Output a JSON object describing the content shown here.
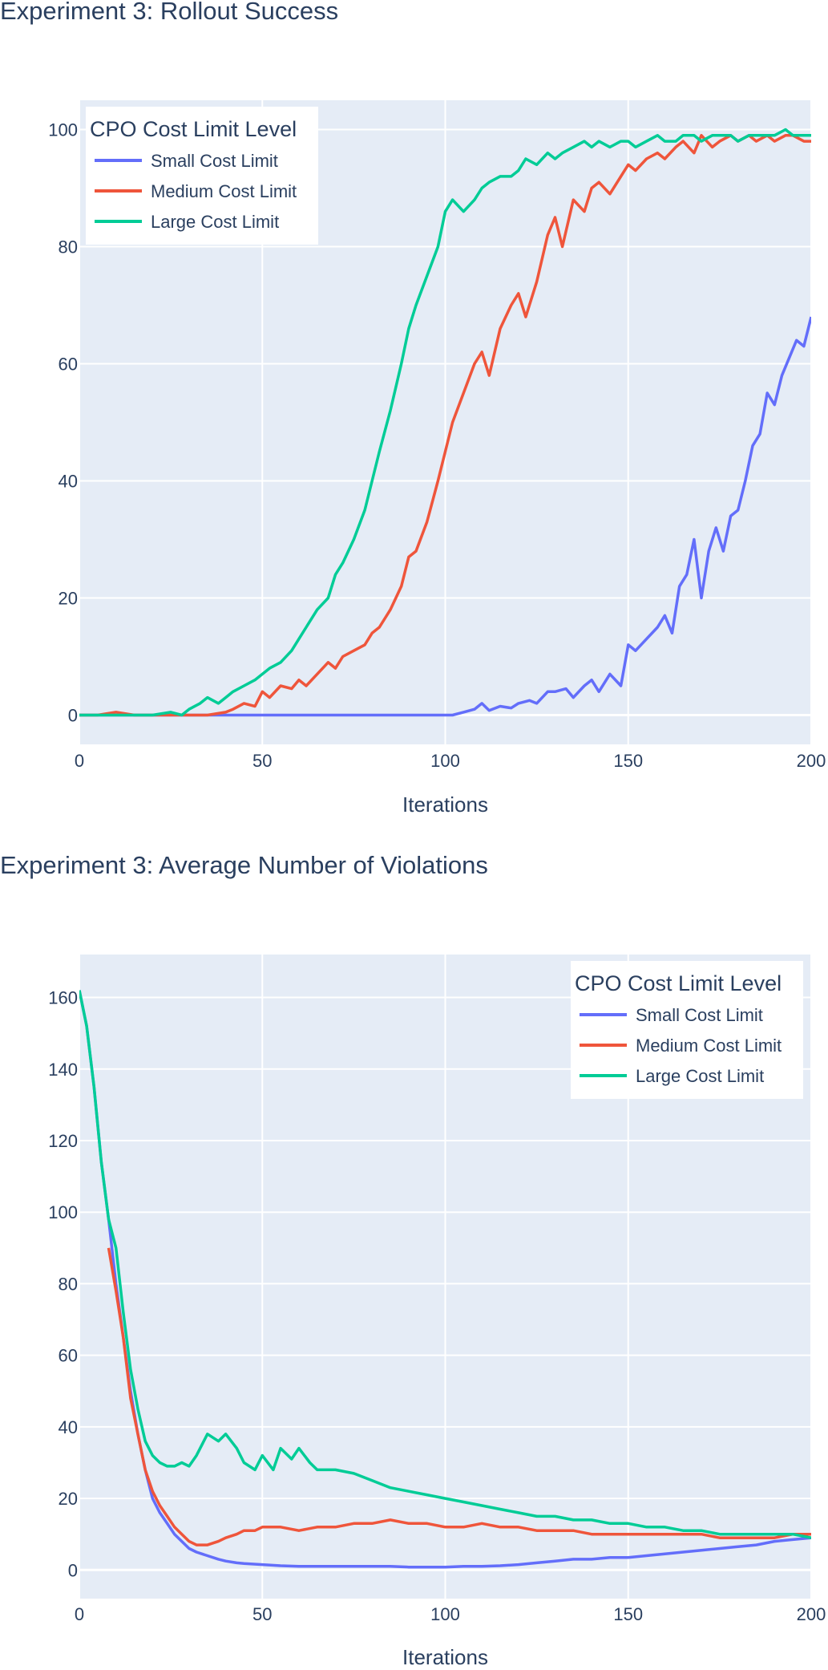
{
  "chart_data": [
    {
      "type": "line",
      "title": "Experiment 3: Rollout Success",
      "xlabel": "Iterations",
      "ylabel": "",
      "xlim": [
        0,
        200
      ],
      "ylim": [
        -5,
        105
      ],
      "xticks": [
        0,
        50,
        100,
        150,
        200
      ],
      "yticks": [
        0,
        20,
        40,
        60,
        80,
        100
      ],
      "grid": true,
      "legend": {
        "title": "CPO Cost Limit Level",
        "placement": "top-left"
      },
      "series": [
        {
          "name": "Small Cost Limit",
          "color": "#636efa",
          "x": [
            0,
            10,
            20,
            30,
            40,
            50,
            60,
            70,
            80,
            90,
            100,
            102,
            105,
            108,
            110,
            112,
            115,
            118,
            120,
            123,
            125,
            128,
            130,
            133,
            135,
            138,
            140,
            142,
            145,
            148,
            150,
            152,
            155,
            158,
            160,
            162,
            164,
            166,
            168,
            170,
            172,
            174,
            176,
            178,
            180,
            182,
            184,
            186,
            188,
            190,
            192,
            194,
            196,
            198,
            200
          ],
          "y": [
            0,
            0,
            0,
            0,
            0,
            0,
            0,
            0,
            0,
            0,
            0,
            0,
            0.5,
            1,
            2,
            0.8,
            1.5,
            1.2,
            2,
            2.5,
            2,
            4,
            4,
            4.5,
            3,
            5,
            6,
            4,
            7,
            5,
            12,
            11,
            13,
            15,
            17,
            14,
            22,
            24,
            30,
            20,
            28,
            32,
            28,
            34,
            35,
            40,
            46,
            48,
            55,
            53,
            58,
            61,
            64,
            63,
            68
          ]
        },
        {
          "name": "Medium Cost Limit",
          "color": "#ef553b",
          "x": [
            0,
            5,
            10,
            15,
            20,
            25,
            30,
            35,
            40,
            42,
            45,
            48,
            50,
            52,
            55,
            58,
            60,
            62,
            65,
            68,
            70,
            72,
            75,
            78,
            80,
            82,
            85,
            88,
            90,
            92,
            95,
            98,
            100,
            102,
            105,
            108,
            110,
            112,
            115,
            118,
            120,
            122,
            125,
            128,
            130,
            132,
            135,
            138,
            140,
            142,
            145,
            148,
            150,
            152,
            155,
            158,
            160,
            163,
            165,
            168,
            170,
            173,
            175,
            178,
            180,
            183,
            185,
            188,
            190,
            193,
            195,
            198,
            200
          ],
          "y": [
            0,
            0,
            0.5,
            0,
            0,
            0,
            0,
            0,
            0.5,
            1,
            2,
            1.5,
            4,
            3,
            5,
            4.5,
            6,
            5,
            7,
            9,
            8,
            10,
            11,
            12,
            14,
            15,
            18,
            22,
            27,
            28,
            33,
            40,
            45,
            50,
            55,
            60,
            62,
            58,
            66,
            70,
            72,
            68,
            74,
            82,
            85,
            80,
            88,
            86,
            90,
            91,
            89,
            92,
            94,
            93,
            95,
            96,
            95,
            97,
            98,
            96,
            99,
            97,
            98,
            99,
            98,
            99,
            98,
            99,
            98,
            99,
            99,
            98,
            98
          ]
        },
        {
          "name": "Large Cost Limit",
          "color": "#00cc96",
          "x": [
            0,
            10,
            20,
            25,
            28,
            30,
            33,
            35,
            38,
            40,
            42,
            45,
            48,
            50,
            52,
            55,
            58,
            60,
            62,
            65,
            68,
            70,
            72,
            75,
            78,
            80,
            82,
            85,
            88,
            90,
            92,
            95,
            98,
            100,
            102,
            105,
            108,
            110,
            112,
            115,
            118,
            120,
            122,
            125,
            128,
            130,
            132,
            135,
            138,
            140,
            142,
            145,
            148,
            150,
            152,
            155,
            158,
            160,
            163,
            165,
            168,
            170,
            173,
            175,
            178,
            180,
            183,
            185,
            188,
            190,
            193,
            195,
            198,
            200
          ],
          "y": [
            0,
            0,
            0,
            0.5,
            0,
            1,
            2,
            3,
            2,
            3,
            4,
            5,
            6,
            7,
            8,
            9,
            11,
            13,
            15,
            18,
            20,
            24,
            26,
            30,
            35,
            40,
            45,
            52,
            60,
            66,
            70,
            75,
            80,
            86,
            88,
            86,
            88,
            90,
            91,
            92,
            92,
            93,
            95,
            94,
            96,
            95,
            96,
            97,
            98,
            97,
            98,
            97,
            98,
            98,
            97,
            98,
            99,
            98,
            98,
            99,
            99,
            98,
            99,
            99,
            99,
            98,
            99,
            99,
            99,
            99,
            100,
            99,
            99,
            99
          ]
        }
      ]
    },
    {
      "type": "line",
      "title": "Experiment 3: Average Number of Violations",
      "xlabel": "Iterations",
      "ylabel": "",
      "xlim": [
        0,
        200
      ],
      "ylim": [
        -8,
        172
      ],
      "xticks": [
        0,
        50,
        100,
        150,
        200
      ],
      "yticks": [
        0,
        20,
        40,
        60,
        80,
        100,
        120,
        140,
        160
      ],
      "grid": true,
      "legend": {
        "title": "CPO Cost Limit Level",
        "placement": "top-right"
      },
      "series": [
        {
          "name": "Small Cost Limit",
          "color": "#636efa",
          "x": [
            0,
            2,
            4,
            6,
            8,
            10,
            12,
            14,
            16,
            18,
            20,
            22,
            24,
            26,
            28,
            30,
            32,
            35,
            38,
            40,
            43,
            45,
            50,
            55,
            60,
            65,
            70,
            75,
            80,
            85,
            90,
            95,
            100,
            105,
            110,
            115,
            120,
            125,
            130,
            135,
            140,
            145,
            150,
            155,
            160,
            165,
            170,
            175,
            180,
            185,
            190,
            195,
            200
          ],
          "y": [
            162,
            152,
            135,
            114,
            98,
            80,
            65,
            50,
            38,
            28,
            20,
            16,
            13,
            10,
            8,
            6,
            5,
            4,
            3,
            2.5,
            2,
            1.8,
            1.5,
            1.2,
            1,
            1,
            1,
            1,
            1,
            1,
            0.8,
            0.8,
            0.8,
            1,
            1,
            1.2,
            1.5,
            2,
            2.5,
            3,
            3,
            3.5,
            3.5,
            4,
            4.5,
            5,
            5.5,
            6,
            6.5,
            7,
            8,
            8.5,
            9
          ]
        },
        {
          "name": "Medium Cost Limit",
          "color": "#ef553b",
          "x": [
            8,
            10,
            12,
            14,
            16,
            18,
            20,
            22,
            24,
            26,
            28,
            30,
            32,
            35,
            38,
            40,
            43,
            45,
            48,
            50,
            55,
            60,
            65,
            70,
            75,
            80,
            85,
            90,
            95,
            100,
            105,
            110,
            115,
            120,
            125,
            130,
            135,
            140,
            145,
            150,
            155,
            160,
            165,
            170,
            175,
            180,
            185,
            190,
            195,
            200
          ],
          "y": [
            90,
            78,
            65,
            48,
            38,
            28,
            22,
            18,
            15,
            12,
            10,
            8,
            7,
            7,
            8,
            9,
            10,
            11,
            11,
            12,
            12,
            11,
            12,
            12,
            13,
            13,
            14,
            13,
            13,
            12,
            12,
            13,
            12,
            12,
            11,
            11,
            11,
            10,
            10,
            10,
            10,
            10,
            10,
            10,
            9,
            9,
            9,
            9,
            10,
            10
          ]
        },
        {
          "name": "Large Cost Limit",
          "color": "#00cc96",
          "x": [
            0,
            2,
            4,
            6,
            8,
            10,
            12,
            14,
            16,
            18,
            20,
            22,
            24,
            26,
            28,
            30,
            32,
            35,
            38,
            40,
            43,
            45,
            48,
            50,
            53,
            55,
            58,
            60,
            63,
            65,
            70,
            75,
            80,
            85,
            90,
            95,
            100,
            105,
            110,
            115,
            120,
            125,
            130,
            135,
            140,
            145,
            150,
            155,
            160,
            165,
            170,
            175,
            180,
            185,
            190,
            195,
            200
          ],
          "y": [
            162,
            152,
            135,
            114,
            98,
            90,
            72,
            56,
            45,
            36,
            32,
            30,
            29,
            29,
            30,
            29,
            32,
            38,
            36,
            38,
            34,
            30,
            28,
            32,
            28,
            34,
            31,
            34,
            30,
            28,
            28,
            27,
            25,
            23,
            22,
            21,
            20,
            19,
            18,
            17,
            16,
            15,
            15,
            14,
            14,
            13,
            13,
            12,
            12,
            11,
            11,
            10,
            10,
            10,
            10,
            10,
            9
          ]
        }
      ]
    }
  ]
}
